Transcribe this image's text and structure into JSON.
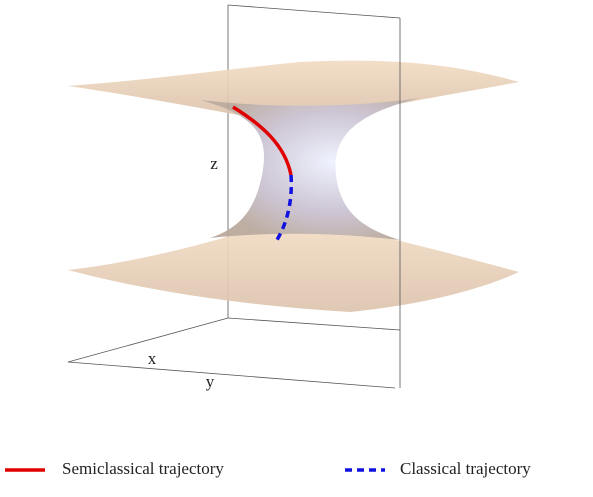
{
  "axes": {
    "x": "x",
    "y": "y",
    "z": "z"
  },
  "legend": [
    {
      "label": "Semiclassical trajectory",
      "color": "#e00000",
      "style": "solid"
    },
    {
      "label": "Classical trajectory",
      "color": "#1010e0",
      "style": "dashed"
    }
  ]
}
